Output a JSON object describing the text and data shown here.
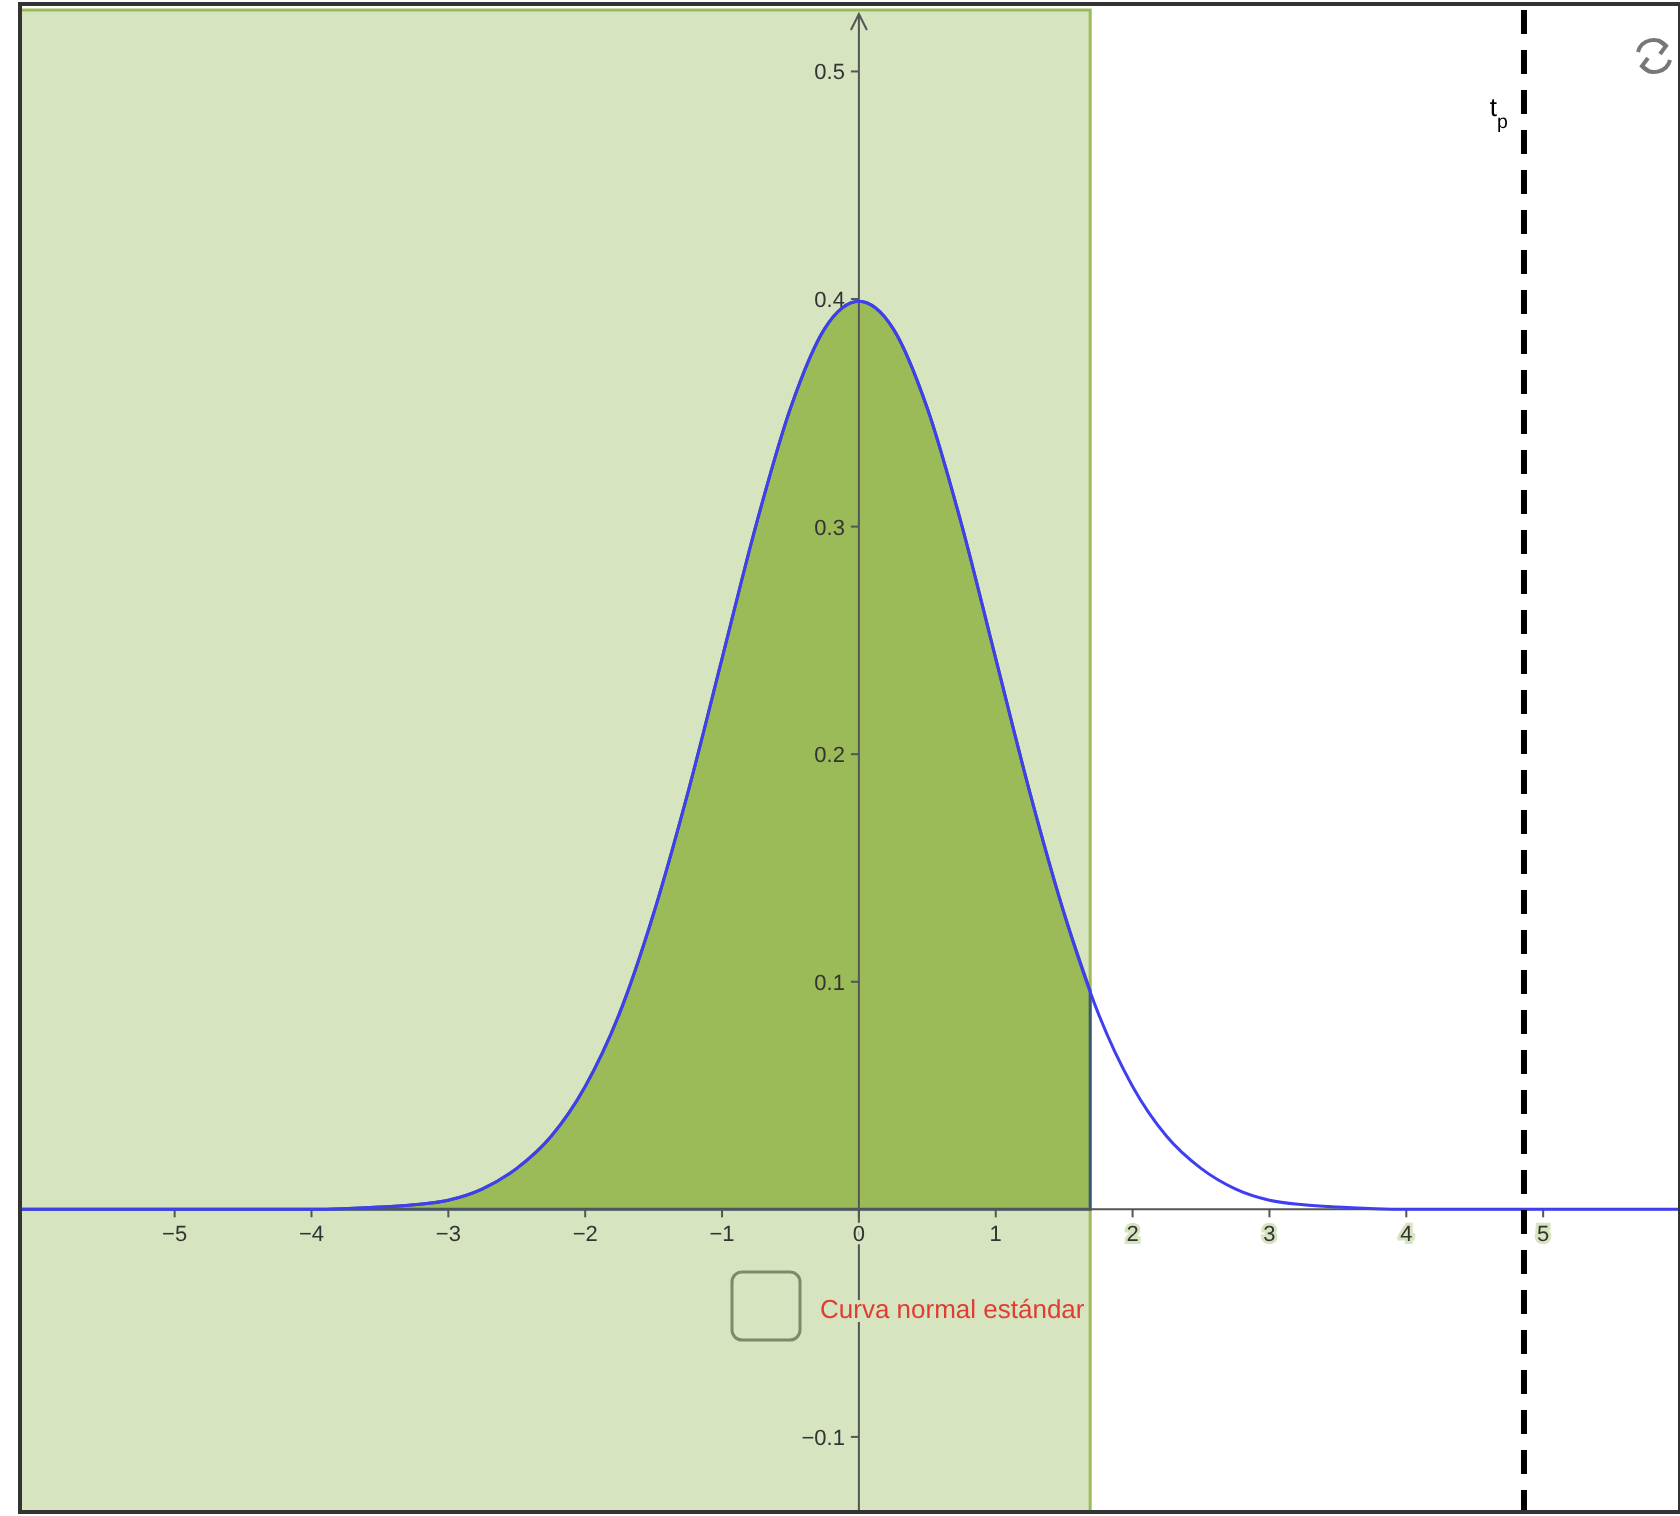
{
  "chart_data": {
    "type": "line",
    "xlim": [
      -6.13,
      6
    ],
    "ylim": [
      -0.133,
      0.527
    ],
    "xticks": [
      {
        "value": -5,
        "label": "−5"
      },
      {
        "value": -4,
        "label": "−4"
      },
      {
        "value": -3,
        "label": "−3"
      },
      {
        "value": -2,
        "label": "−2"
      },
      {
        "value": -1,
        "label": "−1"
      },
      0,
      1,
      2,
      3,
      4,
      5
    ],
    "yticks": [
      {
        "value": -0.1,
        "label": "−0.1"
      },
      0.1,
      0.2,
      0.3,
      0.4,
      0.5
    ],
    "grid": false,
    "marker": "none",
    "line_style": "solid",
    "series": [
      {
        "type": "area",
        "color": "#9bbb59",
        "x": [
          -6.13,
          -5,
          -4,
          -3.5,
          -3.25,
          -3,
          -2.75,
          -2.5,
          -2.25,
          -2,
          -1.75,
          -1.5,
          -1.25,
          -1,
          -0.75,
          -0.5,
          -0.25,
          0,
          0.25,
          0.5,
          0.75,
          1,
          1.25,
          1.5,
          1.69
        ],
        "values": [
          0,
          0,
          0,
          0.001,
          0.002,
          0.004,
          0.009,
          0.018,
          0.032,
          0.054,
          0.086,
          0.13,
          0.183,
          0.242,
          0.301,
          0.352,
          0.387,
          0.399,
          0.387,
          0.352,
          0.301,
          0.242,
          0.183,
          0.13,
          0.096
        ]
      },
      {
        "color": "#3f3ff0",
        "x": [
          -6.13,
          -5,
          -4,
          -3.5,
          -3.25,
          -3,
          -2.75,
          -2.5,
          -2.25,
          -2,
          -1.75,
          -1.5,
          -1.25,
          -1,
          -0.75,
          -0.5,
          -0.25,
          0,
          0.25,
          0.5,
          0.75,
          1,
          1.25,
          1.5,
          1.75,
          2,
          2.25,
          2.5,
          2.75,
          3,
          3.25,
          3.5,
          4,
          5,
          6
        ],
        "values": [
          0,
          0,
          0,
          0.001,
          0.002,
          0.004,
          0.009,
          0.018,
          0.032,
          0.054,
          0.086,
          0.13,
          0.183,
          0.242,
          0.301,
          0.352,
          0.387,
          0.399,
          0.387,
          0.352,
          0.301,
          0.242,
          0.183,
          0.13,
          0.086,
          0.054,
          0.032,
          0.018,
          0.009,
          0.004,
          0.002,
          0.001,
          0,
          0,
          0
        ]
      }
    ],
    "bands": [
      {
        "axis": "x",
        "from": -6.13,
        "to": 1.69,
        "color": "#d7e4c0"
      }
    ],
    "ref_lines": [
      {
        "axis": "x",
        "value": 4.86,
        "label": "t$_{p}$",
        "color": "#000000",
        "line_style": "dashed"
      }
    ],
    "annotations": [
      "Curva normal estándar"
    ]
  }
}
